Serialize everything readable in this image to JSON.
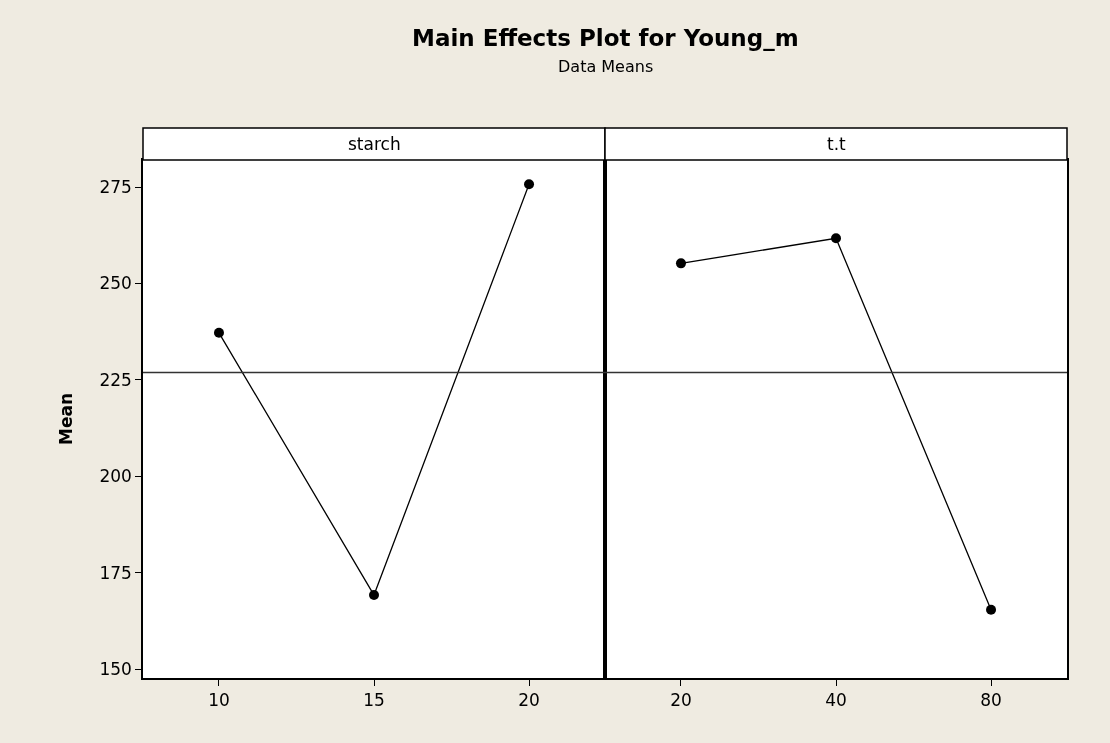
{
  "chart_data": [
    {
      "type": "line",
      "title": "starch",
      "annotations": [
        "Main Effects Plot for Young_m",
        "Data Means"
      ],
      "ylabel": "Mean",
      "categories": [
        "10",
        "15",
        "20"
      ],
      "series": [
        {
          "color": "#000000",
          "values": [
            237.2,
            169.2,
            275.7
          ]
        }
      ],
      "ylim": [
        147.7,
        282
      ],
      "yticks": [
        150,
        175,
        200,
        225,
        250,
        275
      ],
      "ref_lines": [
        {
          "axis": "y",
          "value": 226.9,
          "color": "#333333"
        }
      ],
      "marker": "circle",
      "line_style": "solid",
      "grid": false
    },
    {
      "type": "line",
      "title": "t.t",
      "categories": [
        "20",
        "40",
        "80"
      ],
      "series": [
        {
          "color": "#000000",
          "values": [
            255.2,
            261.7,
            165.4
          ]
        }
      ],
      "ylim": [
        147.7,
        282
      ],
      "yticks": [
        150,
        175,
        200,
        225,
        250,
        275
      ],
      "tick_labels": "x",
      "ref_lines": [
        {
          "axis": "y",
          "value": 226.9,
          "color": "#333333"
        }
      ],
      "marker": "circle",
      "line_style": "solid",
      "grid": false
    }
  ]
}
